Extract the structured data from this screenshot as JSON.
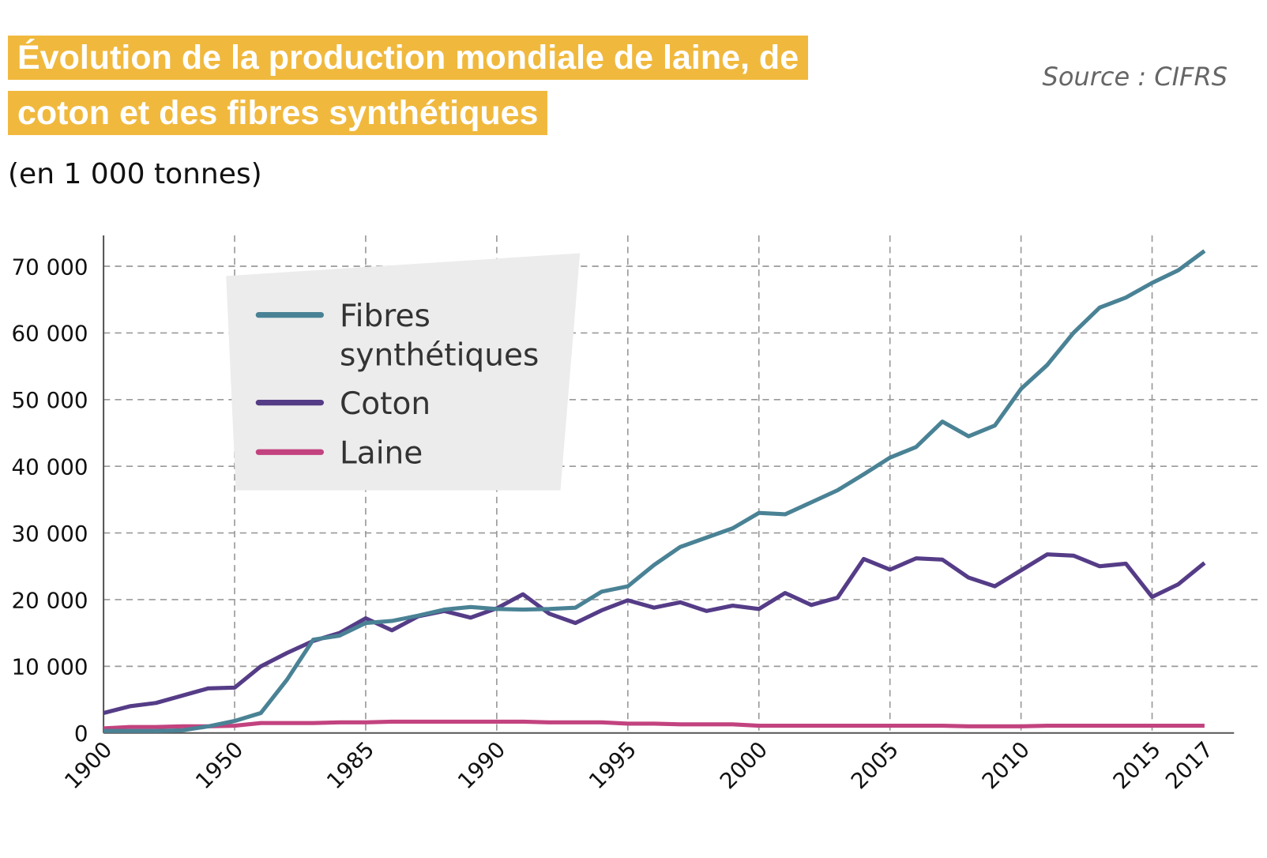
{
  "title": "Évolution de la production mondiale de laine, de coton et des fibres synthétiques",
  "subtitle": "(en 1 000 tonnes)",
  "source": "Source : CIFRS",
  "chart_data": {
    "type": "line",
    "categories": [
      "1900",
      null,
      null,
      null,
      null,
      "1950",
      null,
      null,
      null,
      null,
      "1985",
      null,
      null,
      null,
      null,
      "1990",
      null,
      null,
      null,
      null,
      "1995",
      null,
      null,
      null,
      null,
      "2000",
      null,
      null,
      null,
      null,
      "2005",
      null,
      null,
      null,
      null,
      "2010",
      null,
      null,
      null,
      null,
      "2015",
      null,
      "2017"
    ],
    "series": [
      {
        "name": "Fibres synthétiques",
        "color": "#4a8295",
        "values": [
          300,
          300,
          300,
          400,
          1000,
          1800,
          3000,
          8000,
          14000,
          14600,
          16500,
          16800,
          17600,
          18500,
          18900,
          18600,
          18500,
          18600,
          18800,
          21200,
          22000,
          25200,
          27900,
          29300,
          30700,
          33000,
          32800,
          34600,
          36400,
          38800,
          41300,
          42900,
          46700,
          44500,
          46100,
          51600,
          55200,
          60000,
          63800,
          65300,
          67500,
          69400,
          72300
        ]
      },
      {
        "name": "Coton",
        "color": "#553c87",
        "values": [
          3000,
          4000,
          4500,
          5600,
          6700,
          6800,
          10000,
          12000,
          13800,
          15000,
          17200,
          15400,
          17500,
          18300,
          17300,
          18700,
          20800,
          17900,
          16500,
          18400,
          19900,
          18800,
          19600,
          18300,
          19100,
          18600,
          21000,
          19200,
          20300,
          26100,
          24500,
          26200,
          26000,
          23300,
          22000,
          24400,
          26800,
          26600,
          25000,
          25400,
          20400,
          22300,
          25500
        ]
      },
      {
        "name": "Laine",
        "color": "#c2437f",
        "values": [
          700,
          900,
          900,
          1000,
          1000,
          1100,
          1500,
          1500,
          1500,
          1600,
          1600,
          1700,
          1700,
          1700,
          1700,
          1700,
          1700,
          1600,
          1600,
          1600,
          1400,
          1400,
          1300,
          1300,
          1300,
          1100,
          1100,
          1100,
          1100,
          1100,
          1100,
          1100,
          1100,
          1000,
          1000,
          1000,
          1100,
          1100,
          1100,
          1100,
          1100,
          1100,
          1100
        ]
      }
    ],
    "ylim": [
      0,
      72300
    ],
    "yticks": [
      0,
      {
        "value": 10000,
        "label": "10 000"
      },
      {
        "value": 20000,
        "label": "20 000"
      },
      {
        "value": 30000,
        "label": "30 000"
      },
      {
        "value": 40000,
        "label": "40 000"
      },
      {
        "value": 50000,
        "label": "50 000"
      },
      {
        "value": 60000,
        "label": "60 000"
      },
      {
        "value": 70000,
        "label": "70 000"
      }
    ],
    "grid": true
  }
}
